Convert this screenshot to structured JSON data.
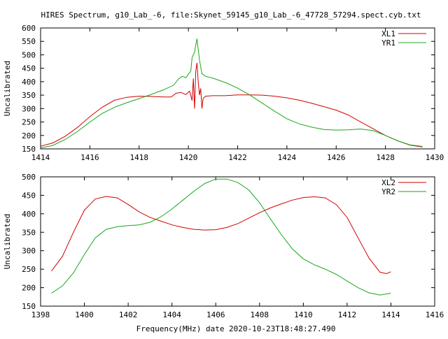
{
  "title": "HIRES Spectrum, g10_Lab_-6, file:Skynet_59145_g10_Lab_-6_47728_57294.spect.cyb.txt",
  "footer": "Frequency(MHz) date 2020-10-23T18:48:27.490",
  "colors": {
    "red": "#d20000",
    "green": "#1aa61a",
    "axis": "#000000"
  },
  "chart_data": [
    {
      "type": "line",
      "ylabel": "Uncalibrated",
      "xlim": [
        1414,
        1430
      ],
      "ylim": [
        150,
        600
      ],
      "xticks": [
        1414,
        1416,
        1418,
        1420,
        1422,
        1424,
        1426,
        1428,
        1430
      ],
      "yticks": [
        150,
        200,
        250,
        300,
        350,
        400,
        450,
        500,
        550,
        600
      ],
      "legend_position": "top-right",
      "series": [
        {
          "name": "XL1",
          "color": "#d20000",
          "points": [
            [
              1414.0,
              160
            ],
            [
              1414.5,
              172
            ],
            [
              1415.0,
              197
            ],
            [
              1415.5,
              230
            ],
            [
              1416.0,
              270
            ],
            [
              1416.5,
              305
            ],
            [
              1417.0,
              331
            ],
            [
              1417.5,
              342
            ],
            [
              1418.0,
              346
            ],
            [
              1418.5,
              345
            ],
            [
              1419.0,
              343
            ],
            [
              1419.3,
              343
            ],
            [
              1419.5,
              357
            ],
            [
              1419.7,
              360
            ],
            [
              1419.9,
              352
            ],
            [
              1420.05,
              365
            ],
            [
              1420.15,
              330
            ],
            [
              1420.2,
              412
            ],
            [
              1420.25,
              300
            ],
            [
              1420.3,
              440
            ],
            [
              1420.35,
              470
            ],
            [
              1420.4,
              400
            ],
            [
              1420.45,
              350
            ],
            [
              1420.5,
              375
            ],
            [
              1420.55,
              300
            ],
            [
              1420.6,
              338
            ],
            [
              1420.7,
              346
            ],
            [
              1421.0,
              348
            ],
            [
              1421.5,
              348
            ],
            [
              1422.0,
              351
            ],
            [
              1422.5,
              351
            ],
            [
              1423.0,
              350
            ],
            [
              1423.5,
              346
            ],
            [
              1424.0,
              340
            ],
            [
              1424.5,
              331
            ],
            [
              1425.0,
              320
            ],
            [
              1425.5,
              307
            ],
            [
              1426.0,
              294
            ],
            [
              1426.5,
              276
            ],
            [
              1427.0,
              250
            ],
            [
              1427.5,
              225
            ],
            [
              1428.0,
              200
            ],
            [
              1428.5,
              180
            ],
            [
              1429.0,
              164
            ],
            [
              1429.5,
              157
            ]
          ]
        },
        {
          "name": "YR1",
          "color": "#1aa61a",
          "points": [
            [
              1414.0,
              153
            ],
            [
              1414.5,
              163
            ],
            [
              1415.0,
              185
            ],
            [
              1415.5,
              215
            ],
            [
              1416.0,
              250
            ],
            [
              1416.5,
              282
            ],
            [
              1417.0,
              305
            ],
            [
              1417.5,
              322
            ],
            [
              1418.0,
              337
            ],
            [
              1418.5,
              353
            ],
            [
              1419.0,
              370
            ],
            [
              1419.4,
              387
            ],
            [
              1419.6,
              410
            ],
            [
              1419.75,
              420
            ],
            [
              1419.9,
              415
            ],
            [
              1420.0,
              428
            ],
            [
              1420.1,
              440
            ],
            [
              1420.15,
              490
            ],
            [
              1420.25,
              510
            ],
            [
              1420.35,
              560
            ],
            [
              1420.45,
              480
            ],
            [
              1420.55,
              430
            ],
            [
              1420.7,
              420
            ],
            [
              1421.0,
              413
            ],
            [
              1421.5,
              397
            ],
            [
              1422.0,
              376
            ],
            [
              1422.5,
              350
            ],
            [
              1423.0,
              320
            ],
            [
              1423.5,
              290
            ],
            [
              1424.0,
              262
            ],
            [
              1424.5,
              243
            ],
            [
              1425.0,
              231
            ],
            [
              1425.5,
              222
            ],
            [
              1426.0,
              220
            ],
            [
              1426.5,
              221
            ],
            [
              1427.0,
              224
            ],
            [
              1427.5,
              218
            ],
            [
              1428.0,
              200
            ],
            [
              1428.5,
              180
            ],
            [
              1429.0,
              165
            ],
            [
              1429.5,
              159
            ]
          ]
        }
      ]
    },
    {
      "type": "line",
      "ylabel": "Uncalibrated",
      "xlim": [
        1398,
        1416
      ],
      "ylim": [
        150,
        500
      ],
      "xticks": [
        1398,
        1400,
        1402,
        1404,
        1406,
        1408,
        1410,
        1412,
        1414,
        1416
      ],
      "yticks": [
        150,
        200,
        250,
        300,
        350,
        400,
        450,
        500
      ],
      "legend_position": "top-right",
      "series": [
        {
          "name": "XL2",
          "color": "#d20000",
          "points": [
            [
              1398.5,
              245
            ],
            [
              1399.0,
              285
            ],
            [
              1399.5,
              350
            ],
            [
              1400.0,
              410
            ],
            [
              1400.5,
              440
            ],
            [
              1401.0,
              447
            ],
            [
              1401.5,
              443
            ],
            [
              1402.0,
              425
            ],
            [
              1402.5,
              405
            ],
            [
              1403.0,
              390
            ],
            [
              1403.5,
              380
            ],
            [
              1404.0,
              370
            ],
            [
              1404.5,
              363
            ],
            [
              1405.0,
              358
            ],
            [
              1405.5,
              356
            ],
            [
              1406.0,
              357
            ],
            [
              1406.5,
              363
            ],
            [
              1407.0,
              373
            ],
            [
              1407.5,
              388
            ],
            [
              1408.0,
              403
            ],
            [
              1408.5,
              416
            ],
            [
              1409.0,
              427
            ],
            [
              1409.5,
              437
            ],
            [
              1410.0,
              444
            ],
            [
              1410.5,
              446
            ],
            [
              1411.0,
              443
            ],
            [
              1411.5,
              425
            ],
            [
              1412.0,
              390
            ],
            [
              1412.5,
              335
            ],
            [
              1413.0,
              280
            ],
            [
              1413.5,
              242
            ],
            [
              1413.8,
              238
            ],
            [
              1414.0,
              243
            ]
          ]
        },
        {
          "name": "YR2",
          "color": "#1aa61a",
          "points": [
            [
              1398.5,
              185
            ],
            [
              1399.0,
              205
            ],
            [
              1399.5,
              240
            ],
            [
              1400.0,
              290
            ],
            [
              1400.5,
              335
            ],
            [
              1401.0,
              358
            ],
            [
              1401.5,
              365
            ],
            [
              1402.0,
              368
            ],
            [
              1402.5,
              370
            ],
            [
              1403.0,
              377
            ],
            [
              1403.5,
              392
            ],
            [
              1404.0,
              413
            ],
            [
              1404.5,
              437
            ],
            [
              1405.0,
              461
            ],
            [
              1405.5,
              482
            ],
            [
              1406.0,
              494
            ],
            [
              1406.5,
              494
            ],
            [
              1407.0,
              485
            ],
            [
              1407.5,
              465
            ],
            [
              1408.0,
              430
            ],
            [
              1408.5,
              386
            ],
            [
              1409.0,
              343
            ],
            [
              1409.5,
              305
            ],
            [
              1410.0,
              278
            ],
            [
              1410.5,
              262
            ],
            [
              1411.0,
              250
            ],
            [
              1411.5,
              236
            ],
            [
              1412.0,
              218
            ],
            [
              1412.5,
              200
            ],
            [
              1413.0,
              186
            ],
            [
              1413.5,
              180
            ],
            [
              1414.0,
              185
            ]
          ]
        }
      ]
    }
  ]
}
